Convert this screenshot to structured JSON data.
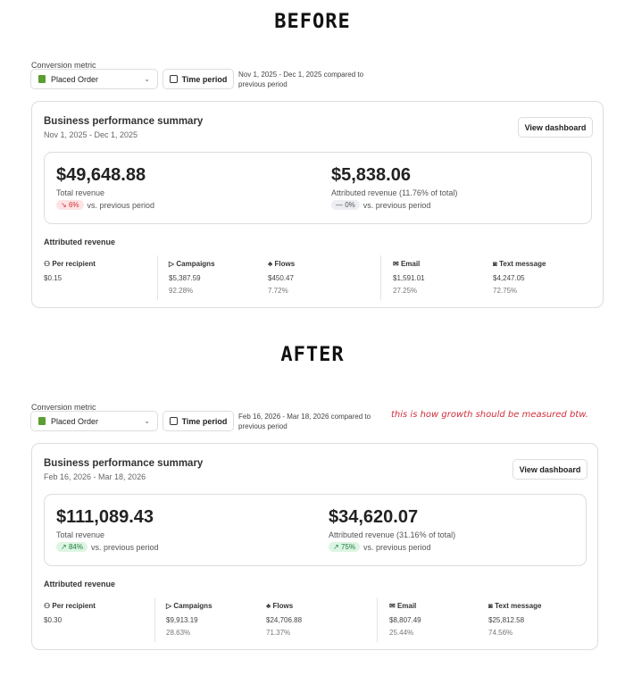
{
  "sections": [
    {
      "heading": "BEFORE",
      "conversion_label": "Conversion metric",
      "metric": "Placed Order",
      "time_period": "Time period",
      "date_compare": "Nov 1, 2025 - Dec 1, 2025 compared to previous period",
      "note": "",
      "title": "Business performance summary",
      "date_range": "Nov 1, 2025 - Dec 1, 2025",
      "view_dashboard": "View dashboard",
      "total": {
        "amount": "$49,648.88",
        "label": "Total revenue",
        "change": "6%",
        "change_icon": "trend-down-icon",
        "vs": "vs. previous period",
        "color": "#d0303c",
        "bg": "#fde3e3"
      },
      "attributed": {
        "amount": "$5,838.06",
        "label": "Attributed revenue (11.76% of total)",
        "change": "0%",
        "change_icon": "dash-icon",
        "vs": "vs. previous period",
        "color": "#555",
        "bg": "#eceef1"
      },
      "attributed_heading": "Attributed revenue",
      "metrics": [
        {
          "icon": "people-icon",
          "name": "Per recipient",
          "value": "$0.15",
          "pct": ""
        },
        {
          "icon": "send-icon",
          "name": "Campaigns",
          "value": "$5,387.59",
          "pct": "92.28%"
        },
        {
          "icon": "flows-icon",
          "name": "Flows",
          "value": "$450.47",
          "pct": "7.72%"
        },
        {
          "icon": "email-icon",
          "name": "Email",
          "value": "$1,591.01",
          "pct": "27.25%"
        },
        {
          "icon": "text-message-icon",
          "name": "Text message",
          "value": "$4,247.05",
          "pct": "72.75%"
        }
      ]
    },
    {
      "heading": "AFTER",
      "conversion_label": "Conversion metric",
      "metric": "Placed Order",
      "time_period": "Time period",
      "date_compare": "Feb 16, 2026 - Mar 18, 2026 compared to previous period",
      "note": "this is how growth should be measured btw.",
      "title": "Business performance summary",
      "date_range": "Feb 16, 2026 - Mar 18, 2026",
      "view_dashboard": "View dashboard",
      "total": {
        "amount": "$111,089.43",
        "label": "Total revenue",
        "change": "84%",
        "change_icon": "trend-up-icon",
        "vs": "vs. previous period",
        "color": "#1f7a3a",
        "bg": "#dcf5e3"
      },
      "attributed": {
        "amount": "$34,620.07",
        "label": "Attributed revenue (31.16% of total)",
        "change": "75%",
        "change_icon": "trend-up-icon",
        "vs": "vs. previous period",
        "color": "#1f7a3a",
        "bg": "#dcf5e3"
      },
      "attributed_heading": "Attributed revenue",
      "metrics": [
        {
          "icon": "people-icon",
          "name": "Per recipient",
          "value": "$0.30",
          "pct": ""
        },
        {
          "icon": "send-icon",
          "name": "Campaigns",
          "value": "$9,913.19",
          "pct": "28.63%"
        },
        {
          "icon": "flows-icon",
          "name": "Flows",
          "value": "$24,706.88",
          "pct": "71.37%"
        },
        {
          "icon": "email-icon",
          "name": "Email",
          "value": "$8,807.49",
          "pct": "25.44%"
        },
        {
          "icon": "text-message-icon",
          "name": "Text message",
          "value": "$25,812.58",
          "pct": "74.56%"
        }
      ]
    }
  ]
}
